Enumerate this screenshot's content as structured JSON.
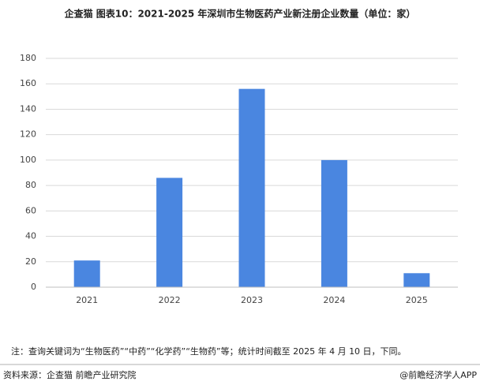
{
  "chart_data": {
    "type": "bar",
    "title": "企查猫  图表10：2021-2025 年深圳市生物医药产业新注册企业数量（单位：家）",
    "categories": [
      "2021",
      "2022",
      "2023",
      "2024",
      "2025"
    ],
    "values": [
      21,
      86,
      156,
      100,
      11
    ],
    "color": "#4a86e0",
    "ylim": [
      0,
      180
    ],
    "yticks": [
      0,
      20,
      40,
      60,
      80,
      100,
      120,
      140,
      160,
      180
    ],
    "grid": true,
    "note": "注：查询关键词为“生物医药”“中药”“化学药”“生物药”等；统计时间截至 2025 年 4 月 10 日，下同。",
    "source": "资料来源：企查猫 前瞻产业研究院",
    "credit": "@前瞻经济学人APP"
  }
}
